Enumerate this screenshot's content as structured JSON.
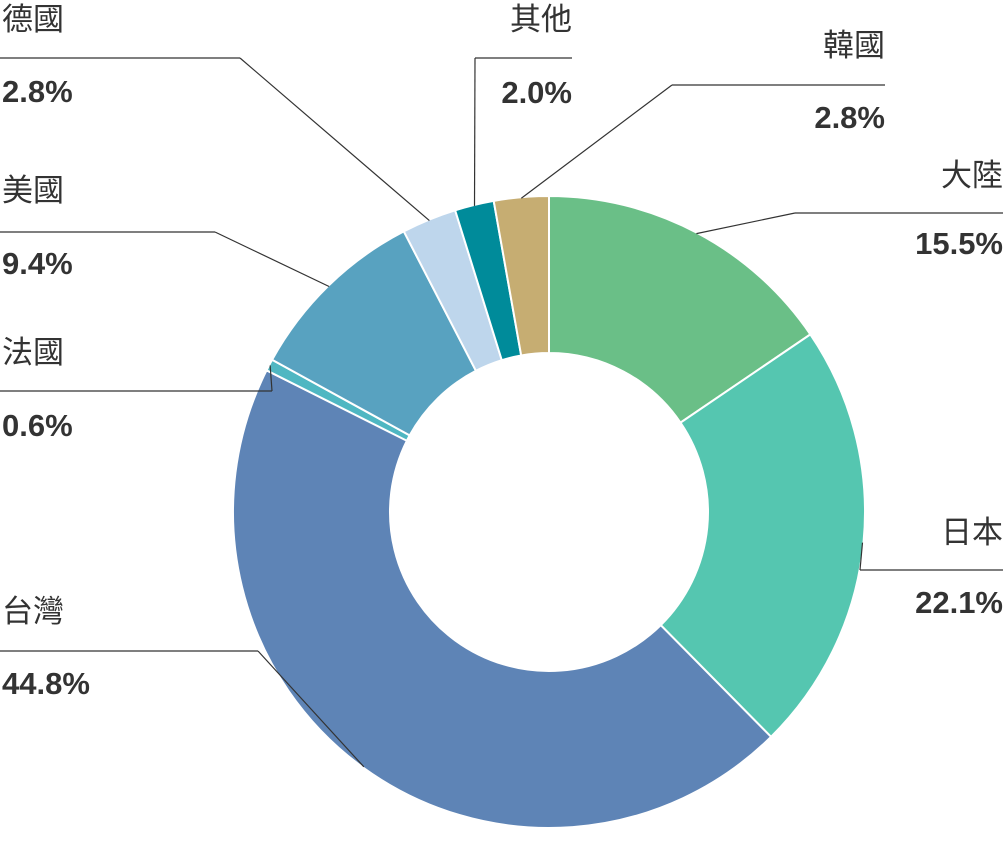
{
  "chart_data": {
    "type": "donut",
    "categories": [
      "大陸",
      "日本",
      "台灣",
      "法國",
      "美國",
      "德國",
      "其他",
      "韓國"
    ],
    "values": [
      15.5,
      22.1,
      44.8,
      0.6,
      9.4,
      2.8,
      2.0,
      2.8
    ],
    "value_labels": [
      "15.5%",
      "22.1%",
      "44.8%",
      "0.6%",
      "9.4%",
      "2.8%",
      "2.0%",
      "2.8%"
    ],
    "colors": [
      "#6abf87",
      "#55c6b0",
      "#5e84b6",
      "#4fb7c2",
      "#58a2c0",
      "#bed6ec",
      "#008b9a",
      "#c6ad72"
    ]
  }
}
